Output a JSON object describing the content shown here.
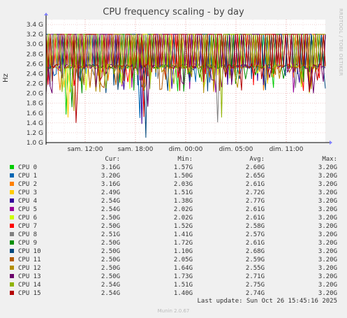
{
  "chart_data": {
    "type": "line",
    "title": "CPU frequency scaling - by day",
    "ylabel": "Hz",
    "ylim": [
      1.0,
      3.5
    ],
    "yticks": [
      "1.0 G",
      "1.2 G",
      "1.4 G",
      "1.6 G",
      "1.8 G",
      "2.0 G",
      "2.2 G",
      "2.4 G",
      "2.6 G",
      "2.8 G",
      "3.0 G",
      "3.2 G",
      "3.4 G"
    ],
    "xticks": [
      "sam. 12:00",
      "sam. 18:00",
      "dim. 00:00",
      "dim. 05:00",
      "dim. 11:00"
    ],
    "grid": true,
    "columns": {
      "cur": "Cur:",
      "min": "Min:",
      "avg": "Avg:",
      "max": "Max:"
    },
    "series": [
      {
        "name": "CPU 0",
        "color": "#00cc00",
        "cur": "3.16G",
        "min": "1.57G",
        "avg": "2.60G",
        "max": "3.20G"
      },
      {
        "name": "CPU 1",
        "color": "#0066b3",
        "cur": "3.20G",
        "min": "1.50G",
        "avg": "2.65G",
        "max": "3.20G"
      },
      {
        "name": "CPU 2",
        "color": "#ff8000",
        "cur": "3.16G",
        "min": "2.03G",
        "avg": "2.61G",
        "max": "3.20G"
      },
      {
        "name": "CPU 3",
        "color": "#ffcc00",
        "cur": "2.49G",
        "min": "1.51G",
        "avg": "2.72G",
        "max": "3.20G"
      },
      {
        "name": "CPU 4",
        "color": "#330099",
        "cur": "2.54G",
        "min": "1.38G",
        "avg": "2.77G",
        "max": "3.20G"
      },
      {
        "name": "CPU 5",
        "color": "#990099",
        "cur": "2.54G",
        "min": "2.02G",
        "avg": "2.61G",
        "max": "3.20G"
      },
      {
        "name": "CPU 6",
        "color": "#ccff00",
        "cur": "2.50G",
        "min": "2.02G",
        "avg": "2.61G",
        "max": "3.20G"
      },
      {
        "name": "CPU 7",
        "color": "#ff0000",
        "cur": "2.50G",
        "min": "1.52G",
        "avg": "2.58G",
        "max": "3.20G"
      },
      {
        "name": "CPU 8",
        "color": "#808080",
        "cur": "2.51G",
        "min": "1.41G",
        "avg": "2.57G",
        "max": "3.20G"
      },
      {
        "name": "CPU 9",
        "color": "#008f00",
        "cur": "2.50G",
        "min": "1.72G",
        "avg": "2.61G",
        "max": "3.20G"
      },
      {
        "name": "CPU 10",
        "color": "#00487d",
        "cur": "2.50G",
        "min": "1.10G",
        "avg": "2.68G",
        "max": "3.20G"
      },
      {
        "name": "CPU 11",
        "color": "#b35a00",
        "cur": "2.50G",
        "min": "2.05G",
        "avg": "2.59G",
        "max": "3.20G"
      },
      {
        "name": "CPU 12",
        "color": "#b38f00",
        "cur": "2.50G",
        "min": "1.64G",
        "avg": "2.55G",
        "max": "3.20G"
      },
      {
        "name": "CPU 13",
        "color": "#6b006b",
        "cur": "2.50G",
        "min": "1.73G",
        "avg": "2.71G",
        "max": "3.20G"
      },
      {
        "name": "CPU 14",
        "color": "#8fb300",
        "cur": "2.54G",
        "min": "1.51G",
        "avg": "2.75G",
        "max": "3.20G"
      },
      {
        "name": "CPU 15",
        "color": "#b30000",
        "cur": "2.54G",
        "min": "1.40G",
        "avg": "2.74G",
        "max": "3.20G"
      }
    ],
    "last_update": "Last update: Sun Oct 26 15:45:16 2025"
  },
  "side_label": "RRDTOOL / TOBI OETIKER",
  "munin_version": "Munin 2.0.67"
}
